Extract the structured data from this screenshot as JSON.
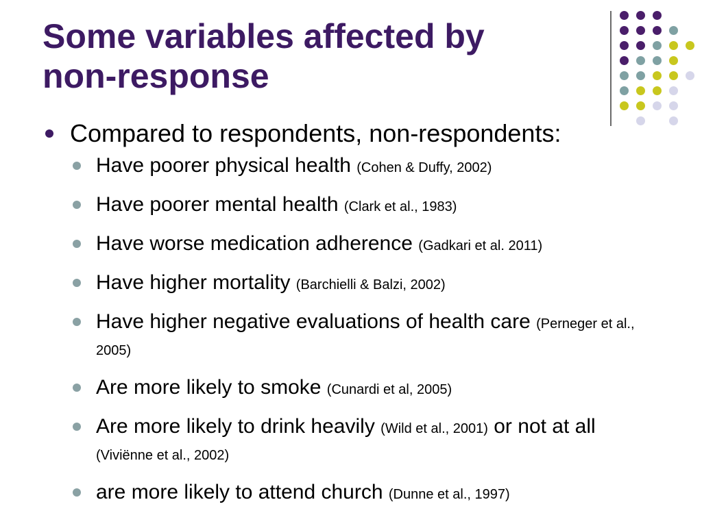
{
  "title": {
    "line1": "Some variables affected by",
    "line2": "non-response"
  },
  "colors": {
    "title": "#3d1a63",
    "dot_purple": "#4a1e6a",
    "dot_teal": "#7fa1a3",
    "dot_yellow": "#c8c71e",
    "dot_lavender": "#d6d6ea"
  },
  "main_bullet": "Compared to respondents, non-respondents:",
  "items": [
    {
      "text": "Have poorer physical health",
      "ref": "(Cohen & Duffy, 2002)"
    },
    {
      "text": "Have poorer mental health",
      "ref": "(Clark et al., 1983)"
    },
    {
      "text": "Have worse medication adherence",
      "ref": "(Gadkari et al. 2011)"
    },
    {
      "text": "Have higher mortality",
      "ref": "(Barchielli & Balzi, 2002)"
    },
    {
      "text": "Have higher negative evaluations of health care",
      "ref": "(Perneger et al., 2005)"
    },
    {
      "text": "Are more likely to smoke",
      "ref": "(Cunardi et al, 2005)"
    },
    {
      "text": "Are more likely to drink heavily",
      "ref": "(Wild et al., 2001)",
      "text2": "or not at all",
      "ref2": "(Viviënne et al., 2002)"
    },
    {
      "text": "are more likely to attend church",
      "ref": "(Dunne et al., 1997)"
    }
  ]
}
